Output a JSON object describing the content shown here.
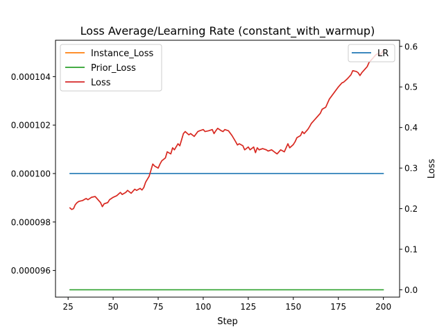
{
  "chart_data": {
    "type": "line",
    "title": "Loss Average/Learning Rate (constant_with_warmup)",
    "xlabel": "Step",
    "ylabel_left": "",
    "ylabel_right": "Loss",
    "xlim": [
      18,
      209
    ],
    "xticks": [
      25,
      50,
      75,
      100,
      125,
      150,
      175,
      200
    ],
    "ylim_left": [
      9.49e-05,
      0.0001055
    ],
    "yticks_left": [
      9.6e-05,
      9.8e-05,
      0.0001,
      0.000102,
      0.000104
    ],
    "ytick_labels_left": [
      "0.000096",
      "0.000098",
      "0.000100",
      "0.000102",
      "0.000104"
    ],
    "ylim_right": [
      -0.018,
      0.615
    ],
    "yticks_right": [
      0.0,
      0.1,
      0.2,
      0.3,
      0.4,
      0.5,
      0.6
    ],
    "ytick_labels_right": [
      "0.0",
      "0.1",
      "0.2",
      "0.3",
      "0.4",
      "0.5",
      "0.6"
    ],
    "legend_left": {
      "placement": "upper-left",
      "entries": [
        "Instance_Loss",
        "Prior_Loss",
        "Loss"
      ]
    },
    "legend_right": {
      "placement": "upper-right",
      "entries": [
        "LR"
      ]
    },
    "series": [
      {
        "name": "LR",
        "axis": "left",
        "color": "#1f77b4",
        "x": [
          26,
          200
        ],
        "y": [
          0.0001,
          0.0001
        ]
      },
      {
        "name": "Instance_Loss",
        "axis": "right",
        "color": "#ff7f0e",
        "x": [
          26,
          27,
          28,
          29,
          30,
          31,
          33,
          35,
          36,
          38,
          40,
          41,
          43,
          44,
          45,
          47,
          48,
          50,
          52,
          54,
          55,
          57,
          58,
          60,
          62,
          63,
          65,
          66,
          67,
          68,
          70,
          71,
          72,
          73,
          75,
          76,
          77,
          79,
          80,
          82,
          83,
          84,
          86,
          87,
          88,
          89,
          90,
          92,
          93,
          95,
          97,
          98,
          100,
          101,
          103,
          105,
          106,
          107,
          108,
          110,
          111,
          112,
          114,
          116,
          118,
          119,
          120,
          122,
          123,
          125,
          126,
          128,
          129,
          130,
          131,
          133,
          135,
          136,
          138,
          140,
          141,
          143,
          145,
          146,
          147,
          148,
          150,
          151,
          152,
          154,
          155,
          156,
          158,
          159,
          160,
          162,
          163,
          165,
          166,
          168,
          169,
          170,
          172,
          173,
          175,
          176,
          177,
          178,
          180,
          181,
          182,
          183,
          185,
          186,
          187,
          188,
          190,
          191,
          192,
          193,
          195,
          196,
          197,
          198,
          200
        ],
        "y": [
          0.202,
          0.198,
          0.2,
          0.21,
          0.215,
          0.218,
          0.22,
          0.225,
          0.222,
          0.228,
          0.23,
          0.225,
          0.215,
          0.205,
          0.212,
          0.215,
          0.222,
          0.228,
          0.232,
          0.24,
          0.235,
          0.24,
          0.245,
          0.238,
          0.248,
          0.245,
          0.25,
          0.246,
          0.252,
          0.265,
          0.28,
          0.295,
          0.31,
          0.305,
          0.3,
          0.31,
          0.318,
          0.325,
          0.34,
          0.335,
          0.35,
          0.345,
          0.36,
          0.355,
          0.37,
          0.385,
          0.39,
          0.382,
          0.385,
          0.378,
          0.39,
          0.392,
          0.395,
          0.39,
          0.392,
          0.395,
          0.385,
          0.392,
          0.398,
          0.392,
          0.39,
          0.395,
          0.392,
          0.38,
          0.365,
          0.357,
          0.36,
          0.355,
          0.345,
          0.352,
          0.345,
          0.352,
          0.338,
          0.35,
          0.345,
          0.348,
          0.345,
          0.342,
          0.345,
          0.338,
          0.335,
          0.345,
          0.34,
          0.35,
          0.36,
          0.35,
          0.358,
          0.365,
          0.375,
          0.38,
          0.39,
          0.385,
          0.395,
          0.402,
          0.41,
          0.42,
          0.425,
          0.435,
          0.445,
          0.45,
          0.46,
          0.47,
          0.482,
          0.488,
          0.5,
          0.505,
          0.51,
          0.512,
          0.52,
          0.525,
          0.53,
          0.54,
          0.538,
          0.535,
          0.528,
          0.535,
          0.545,
          0.55,
          0.56,
          0.565,
          0.575,
          0.58,
          0.582,
          0.578,
          0.59
        ]
      },
      {
        "name": "Prior_Loss",
        "axis": "right",
        "color": "#2ca02c",
        "x": [
          26,
          200
        ],
        "y": [
          0.0,
          0.0
        ]
      },
      {
        "name": "Loss",
        "axis": "right",
        "color": "#d62728",
        "x": [
          26,
          27,
          28,
          29,
          30,
          31,
          33,
          35,
          36,
          38,
          40,
          41,
          43,
          44,
          45,
          47,
          48,
          50,
          52,
          54,
          55,
          57,
          58,
          60,
          62,
          63,
          65,
          66,
          67,
          68,
          70,
          71,
          72,
          73,
          75,
          76,
          77,
          79,
          80,
          82,
          83,
          84,
          86,
          87,
          88,
          89,
          90,
          92,
          93,
          95,
          97,
          98,
          100,
          101,
          103,
          105,
          106,
          107,
          108,
          110,
          111,
          112,
          114,
          116,
          118,
          119,
          120,
          122,
          123,
          125,
          126,
          128,
          129,
          130,
          131,
          133,
          135,
          136,
          138,
          140,
          141,
          143,
          145,
          146,
          147,
          148,
          150,
          151,
          152,
          154,
          155,
          156,
          158,
          159,
          160,
          162,
          163,
          165,
          166,
          168,
          169,
          170,
          172,
          173,
          175,
          176,
          177,
          178,
          180,
          181,
          182,
          183,
          185,
          186,
          187,
          188,
          190,
          191,
          192,
          193,
          195,
          196,
          197,
          198,
          200
        ],
        "y": [
          0.202,
          0.198,
          0.2,
          0.21,
          0.215,
          0.218,
          0.22,
          0.225,
          0.222,
          0.228,
          0.23,
          0.225,
          0.215,
          0.205,
          0.212,
          0.215,
          0.222,
          0.228,
          0.232,
          0.24,
          0.235,
          0.24,
          0.245,
          0.238,
          0.248,
          0.245,
          0.25,
          0.246,
          0.252,
          0.265,
          0.28,
          0.295,
          0.31,
          0.305,
          0.3,
          0.31,
          0.318,
          0.325,
          0.34,
          0.335,
          0.35,
          0.345,
          0.36,
          0.355,
          0.37,
          0.385,
          0.39,
          0.382,
          0.385,
          0.378,
          0.39,
          0.392,
          0.395,
          0.39,
          0.392,
          0.395,
          0.385,
          0.392,
          0.398,
          0.392,
          0.39,
          0.395,
          0.392,
          0.38,
          0.365,
          0.357,
          0.36,
          0.355,
          0.345,
          0.352,
          0.345,
          0.352,
          0.338,
          0.35,
          0.345,
          0.348,
          0.345,
          0.342,
          0.345,
          0.338,
          0.335,
          0.345,
          0.34,
          0.35,
          0.36,
          0.35,
          0.358,
          0.365,
          0.375,
          0.38,
          0.39,
          0.385,
          0.395,
          0.402,
          0.41,
          0.42,
          0.425,
          0.435,
          0.445,
          0.45,
          0.46,
          0.47,
          0.482,
          0.488,
          0.5,
          0.505,
          0.51,
          0.512,
          0.52,
          0.525,
          0.53,
          0.54,
          0.538,
          0.535,
          0.528,
          0.535,
          0.545,
          0.55,
          0.56,
          0.565,
          0.575,
          0.58,
          0.582,
          0.578,
          0.59
        ]
      }
    ]
  }
}
